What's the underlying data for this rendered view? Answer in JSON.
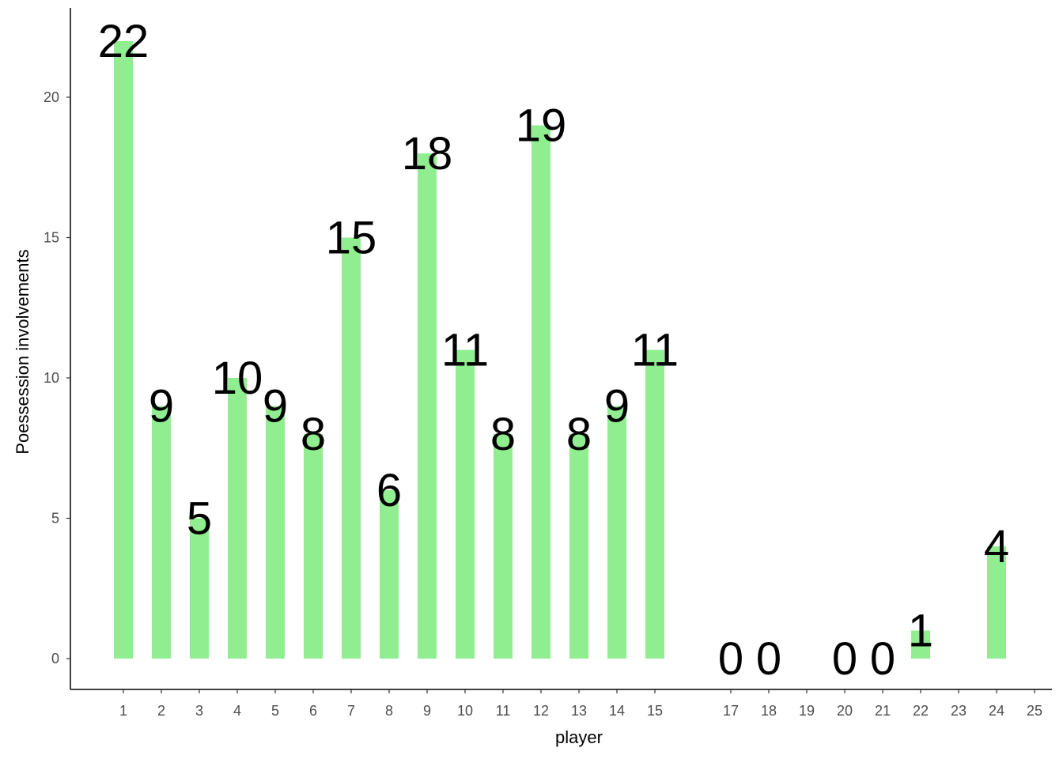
{
  "chart_data": {
    "type": "bar",
    "xlabel": "player",
    "ylabel": "Poessession involvements",
    "x_ticks": [
      "1",
      "2",
      "3",
      "4",
      "5",
      "6",
      "7",
      "8",
      "9",
      "10",
      "11",
      "12",
      "13",
      "14",
      "15",
      "17",
      "18",
      "19",
      "20",
      "21",
      "22",
      "23",
      "24",
      "25"
    ],
    "y_ticks": [
      0,
      5,
      10,
      15,
      20
    ],
    "ylim": [
      -1.1,
      23.1
    ],
    "grid": false,
    "colors": {
      "bar": "#90ee90",
      "axis": "#000000",
      "tick_text": "#4d4d4d"
    },
    "bars": [
      {
        "player": "1",
        "value": 22
      },
      {
        "player": "2",
        "value": 9
      },
      {
        "player": "3",
        "value": 5
      },
      {
        "player": "4",
        "value": 10
      },
      {
        "player": "5",
        "value": 9
      },
      {
        "player": "6",
        "value": 8
      },
      {
        "player": "7",
        "value": 15
      },
      {
        "player": "8",
        "value": 6
      },
      {
        "player": "9",
        "value": 18
      },
      {
        "player": "10",
        "value": 11
      },
      {
        "player": "11",
        "value": 8
      },
      {
        "player": "12",
        "value": 19
      },
      {
        "player": "13",
        "value": 8
      },
      {
        "player": "14",
        "value": 9
      },
      {
        "player": "15",
        "value": 11
      },
      {
        "player": "17",
        "value": 0
      },
      {
        "player": "18",
        "value": 0
      },
      {
        "player": "20",
        "value": 0
      },
      {
        "player": "21",
        "value": 0
      },
      {
        "player": "22",
        "value": 1
      },
      {
        "player": "24",
        "value": 4
      }
    ]
  }
}
